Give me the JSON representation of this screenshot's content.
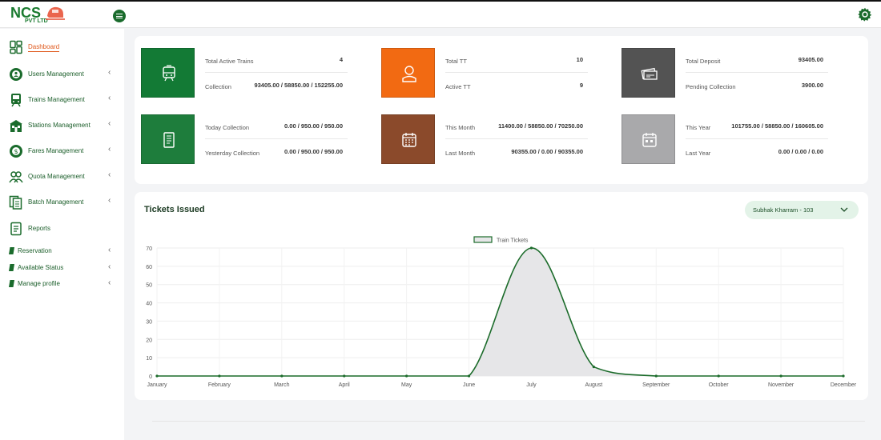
{
  "brand": {
    "name": "NCS",
    "sub": "PVT LTD"
  },
  "colors": {
    "primary": "#1a6b2c",
    "accent": "#e05a1e"
  },
  "sidebar": {
    "items": [
      {
        "label": "Dashboard",
        "icon": "dashboard-icon",
        "active": true
      },
      {
        "label": "Users Management",
        "icon": "users-gear-icon"
      },
      {
        "label": "Trains Management",
        "icon": "train-icon"
      },
      {
        "label": "Stations Management",
        "icon": "station-icon"
      },
      {
        "label": "Fares Management",
        "icon": "fare-gear-icon"
      },
      {
        "label": "Quota Management",
        "icon": "quota-users-icon"
      },
      {
        "label": "Batch Management",
        "icon": "batch-icon"
      },
      {
        "label": "Reports",
        "icon": "report-icon"
      }
    ],
    "small_items": [
      {
        "label": "Reservation",
        "icon": "doc-icon"
      },
      {
        "label": "Available Status",
        "icon": "doc-icon"
      },
      {
        "label": "Manage profile",
        "icon": "doc-icon"
      }
    ]
  },
  "stats": [
    {
      "color": "#137a35",
      "icon": "train-icon",
      "k1": "Total Active Trains",
      "v1": "4",
      "k2": "Collection",
      "v2": "93405.00 / 58850.00 / 152255.00"
    },
    {
      "color": "#f26a12",
      "icon": "person-icon",
      "k1": "Total TT",
      "v1": "10",
      "k2": "Active TT",
      "v2": "9"
    },
    {
      "color": "#535353",
      "icon": "cash-icon",
      "k1": "Total Deposit",
      "v1": "93405.00",
      "k2": "Pending Collection",
      "v2": "3900.00"
    },
    {
      "color": "#1e7d3c",
      "icon": "receipt-icon",
      "k1": "Today Collection",
      "v1": "0.00 / 950.00 / 950.00",
      "k2": "Yesterday Collection",
      "v2": "0.00 / 950.00 / 950.00"
    },
    {
      "color": "#8b4a2b",
      "icon": "calendar-icon",
      "k1": "This Month",
      "v1": "11400.00 / 58850.00 / 70250.00",
      "k2": "Last Month",
      "v2": "90355.00 / 0.00 / 90355.00"
    },
    {
      "color": "#a9a9ab",
      "icon": "calendar-icon",
      "k1": "This Year",
      "v1": "101755.00 / 58850.00 / 160605.00",
      "k2": "Last Year",
      "v2": "0.00 / 0.00 / 0.00"
    }
  ],
  "chart_section": {
    "title": "Tickets Issued",
    "selected_user": "Subhak Kharram - 103"
  },
  "chart_data": {
    "type": "area",
    "categories": [
      "January",
      "February",
      "March",
      "April",
      "May",
      "June",
      "July",
      "August",
      "September",
      "October",
      "November",
      "December"
    ],
    "series": [
      {
        "name": "Train Tickets",
        "values": [
          0,
          0,
          0,
          0,
          0,
          0,
          70,
          5,
          0,
          0,
          0,
          0
        ],
        "color": "#1b6b2a",
        "fill": "#e6e6e8"
      }
    ],
    "ylim": [
      0,
      70
    ],
    "yticks": [
      0,
      10,
      20,
      30,
      40,
      50,
      60,
      70
    ],
    "legend": "top-center",
    "grid": true
  }
}
